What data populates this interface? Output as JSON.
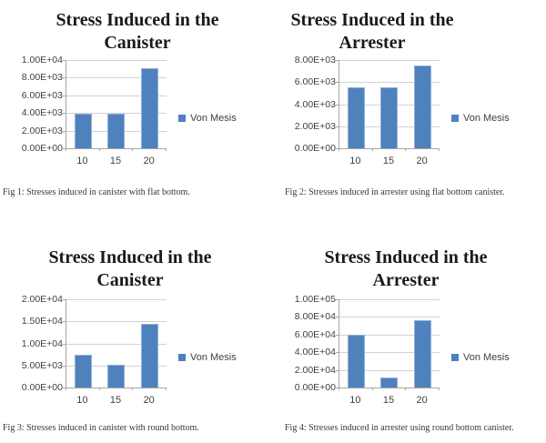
{
  "page": {
    "background": "#ffffff"
  },
  "theme": {
    "bar_color": "#4f81bd",
    "bar_border_color": "#8fb0d8",
    "grid_color": "#d2d2d2",
    "axis_color": "#a6a6a6",
    "tick_label_color": "#404040",
    "title_color": "#1a1a1a"
  },
  "chart_data": [
    {
      "type": "bar",
      "title": "Stress Induced in the Canister",
      "title_lines": [
        "Stress Induced in the",
        "Canister"
      ],
      "categories": [
        "10",
        "15",
        "20"
      ],
      "series": [
        {
          "name": "Von Mesis",
          "values": [
            3900,
            3900,
            9100
          ]
        }
      ],
      "ylim": [
        0,
        10000
      ],
      "ytick_labels": [
        "1.00E+04",
        "8.00E+03",
        "6.00E+03",
        "4.00E+03",
        "2.00E+03",
        "0.00E+00"
      ],
      "grid": true,
      "legend": {
        "label": "Von Mesis",
        "position": "right"
      },
      "caption": "Fig 1: Stresses induced in canister with flat bottom."
    },
    {
      "type": "bar",
      "title": "Stress Induced in the Arrester",
      "title_lines": [
        "Stress Induced in the",
        "Arrester"
      ],
      "categories": [
        "10",
        "15",
        "20"
      ],
      "series": [
        {
          "name": "Von Mesis",
          "values": [
            5500,
            5500,
            7500
          ]
        }
      ],
      "ylim": [
        0,
        8000
      ],
      "ytick_labels": [
        "8.00E+03",
        "6.00E+03",
        "4.00E+03",
        "2.00E+03",
        "0.00E+00"
      ],
      "grid": true,
      "legend": {
        "label": "Von Mesis",
        "position": "right"
      },
      "caption": "Fig 2: Stresses induced in arrester using flat bottom canister."
    },
    {
      "type": "bar",
      "title": "Stress Induced in the Canister",
      "title_lines": [
        "Stress Induced in the",
        "Canister"
      ],
      "categories": [
        "10",
        "15",
        "20"
      ],
      "series": [
        {
          "name": "Von Mesis",
          "values": [
            7500,
            5200,
            14500
          ]
        }
      ],
      "ylim": [
        0,
        20000
      ],
      "ytick_labels": [
        "2.00E+04",
        "1.50E+04",
        "1.00E+04",
        "5.00E+03",
        "0.00E+00"
      ],
      "grid": true,
      "legend": {
        "label": "Von Mesis",
        "position": "right"
      },
      "caption": "Fig 3: Stresses induced in canister with round bottom."
    },
    {
      "type": "bar",
      "title": "Stress Induced in the Arrester",
      "title_lines": [
        "Stress Induced in the",
        "Arrester"
      ],
      "categories": [
        "10",
        "15",
        "20"
      ],
      "series": [
        {
          "name": "Von Mesis",
          "values": [
            60000,
            11000,
            76000
          ]
        }
      ],
      "ylim": [
        0,
        100000
      ],
      "ytick_labels": [
        "1.00E+05",
        "8.00E+04",
        "6.00E+04",
        "4.00E+04",
        "2.00E+04",
        "0.00E+00"
      ],
      "grid": true,
      "legend": {
        "label": "Von Mesis",
        "position": "right"
      },
      "caption": "Fig 4: Stresses induced in arrester using round bottom canister."
    }
  ]
}
